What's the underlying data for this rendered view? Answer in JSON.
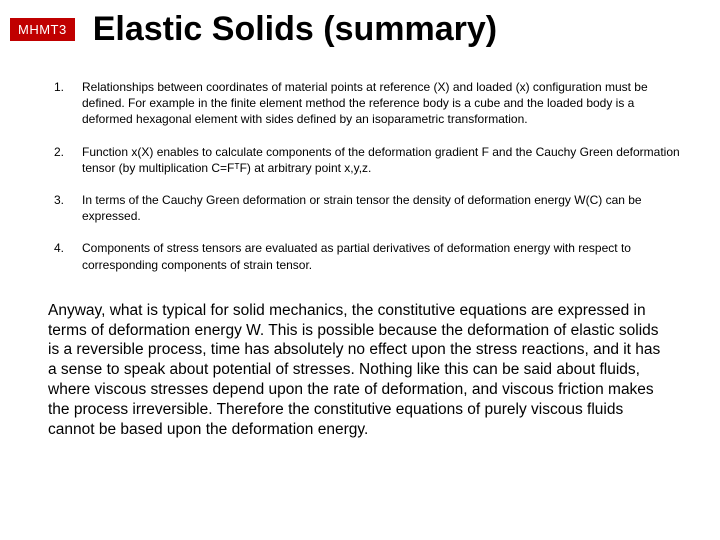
{
  "header": {
    "badge": "MHMT3",
    "title": "Elastic Solids (summary)"
  },
  "items": [
    {
      "num": "1.",
      "text": "Relationships between coordinates of material points at reference (X) and loaded (x) configuration must be defined. For example in the finite element method the reference body is a cube and the loaded body is a deformed hexagonal element with sides defined by an isoparametric transformation."
    },
    {
      "num": "2.",
      "text": "Function x(X) enables to calculate components of the deformation gradient F and the Cauchy Green deformation tensor (by multiplication C=FᵀF) at arbitrary point x,y,z."
    },
    {
      "num": "3.",
      "text": "In terms of the Cauchy Green deformation or strain tensor the density of deformation energy W(C) can be expressed."
    },
    {
      "num": "4.",
      "text": "Components of stress tensors are evaluated as partial derivatives of deformation energy with respect to corresponding components of strain tensor."
    }
  ],
  "paragraph": "Anyway, what is typical for solid mechanics, the constitutive equations are expressed in terms of deformation energy W. This is possible because the deformation of elastic solids is a reversible process, time has absolutely no effect upon the stress reactions, and it has a sense to speak about potential of stresses. Nothing like this can be said about fluids, where viscous stresses depend upon the rate of deformation, and viscous friction makes the process irreversible. Therefore the constitutive equations of purely viscous fluids cannot be based upon the deformation energy.",
  "colors": {
    "badge_bg": "#c00000",
    "badge_fg": "#ffffff",
    "text": "#000000",
    "background": "#ffffff"
  },
  "typography": {
    "title_fontsize": 34,
    "title_weight": "bold",
    "badge_fontsize": 13,
    "list_fontsize": 12,
    "paragraph_fontsize": 15.5,
    "font_family": "Arial"
  }
}
